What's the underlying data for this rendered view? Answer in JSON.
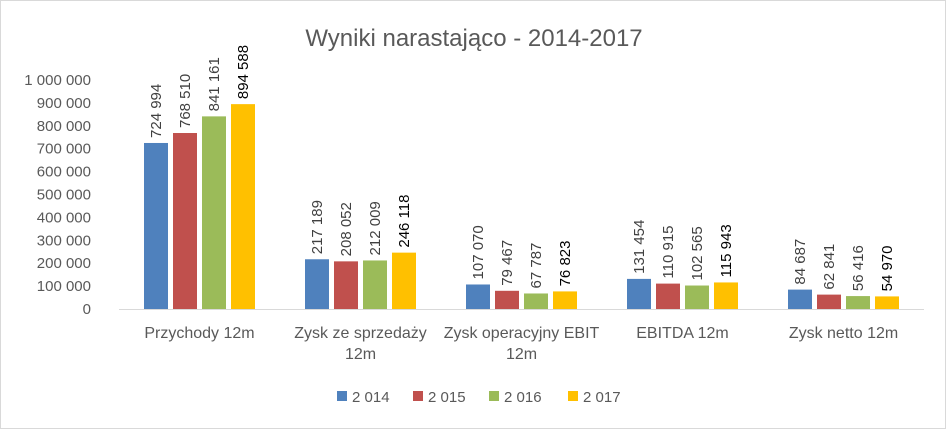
{
  "chart_data": {
    "type": "bar",
    "title": "Wyniki narastająco - 2014-2017",
    "categories": [
      [
        "Przychody 12m"
      ],
      [
        "Zysk ze sprzedaży",
        "12m"
      ],
      [
        "Zysk operacyjny EBIT",
        "12m"
      ],
      [
        "EBITDA 12m"
      ],
      [
        "Zysk netto 12m"
      ]
    ],
    "series": [
      {
        "name": "2 014",
        "color": "#4f81bd",
        "values": [
          724994,
          217189,
          107070,
          131454,
          84687
        ],
        "labels": [
          "724 994",
          "217 189",
          "107 070",
          "131 454",
          "84 687"
        ]
      },
      {
        "name": "2 015",
        "color": "#c0504d",
        "values": [
          768510,
          208052,
          79467,
          110915,
          62841
        ],
        "labels": [
          "768 510",
          "208 052",
          "79 467",
          "110 915",
          "62 841"
        ]
      },
      {
        "name": "2 016",
        "color": "#9bbb59",
        "values": [
          841161,
          212009,
          67787,
          102565,
          56416
        ],
        "labels": [
          "841 161",
          "212 009",
          "67 787",
          "102 565",
          "56 416"
        ]
      },
      {
        "name": "2 017",
        "color": "#ffc000",
        "values": [
          894588,
          246118,
          76823,
          115943,
          54970
        ],
        "labels": [
          "894 588",
          "246 118",
          "76 823",
          "115 943",
          "54 970"
        ]
      }
    ],
    "ylim": [
      0,
      1000000
    ],
    "yticks": [
      {
        "value": 0,
        "label": "0"
      },
      {
        "value": 100000,
        "label": "100 000"
      },
      {
        "value": 200000,
        "label": "200 000"
      },
      {
        "value": 300000,
        "label": "300 000"
      },
      {
        "value": 400000,
        "label": "400 000"
      },
      {
        "value": 500000,
        "label": "500 000"
      },
      {
        "value": 600000,
        "label": "600 000"
      },
      {
        "value": 700000,
        "label": "700 000"
      },
      {
        "value": 800000,
        "label": "800 000"
      },
      {
        "value": 900000,
        "label": "900 000"
      },
      {
        "value": 1000000,
        "label": "1 000 000"
      }
    ],
    "grid": false,
    "legend_position": "bottom"
  }
}
